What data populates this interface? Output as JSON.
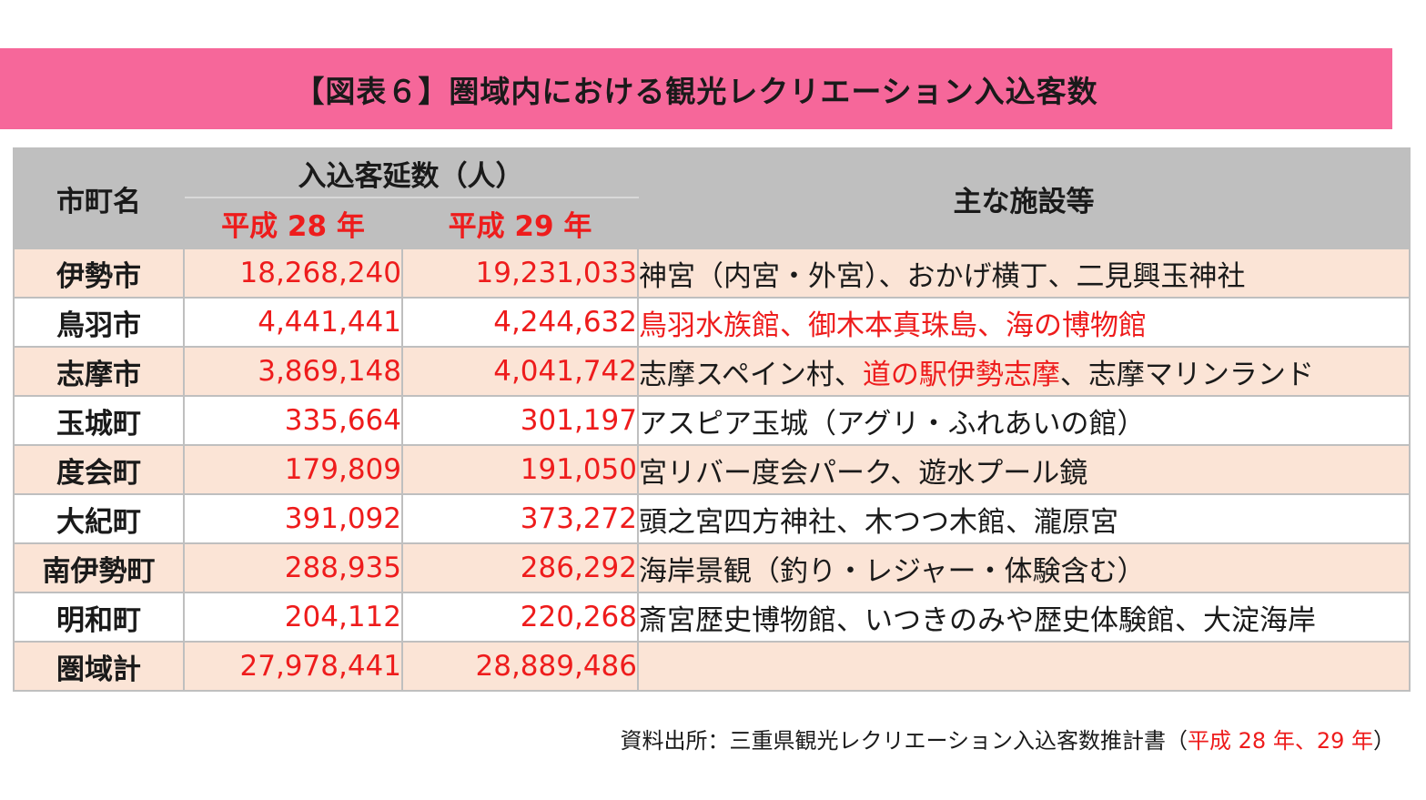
{
  "title": "【図表６】圏域内における観光レクリエーション入込客数",
  "headers": {
    "city": "市町名",
    "visitors_group": "入込客延数（人）",
    "year1": "平成 28 年",
    "year2": "平成 29 年",
    "facilities": "主な施設等"
  },
  "rows": [
    {
      "city": "伊勢市",
      "y28": "18,268,240",
      "y29": "19,231,033",
      "facilities": [
        {
          "text": "神宮（内宮・外宮）、おかげ横丁、二見興玉神社",
          "red": false
        }
      ]
    },
    {
      "city": "鳥羽市",
      "y28": "4,441,441",
      "y29": "4,244,632",
      "facilities": [
        {
          "text": "鳥羽水族館、御木本真珠島、海の博物館",
          "red": true
        }
      ]
    },
    {
      "city": "志摩市",
      "y28": "3,869,148",
      "y29": "4,041,742",
      "facilities": [
        {
          "text": "志摩スペイン村、",
          "red": false
        },
        {
          "text": "道の駅伊勢志摩",
          "red": true
        },
        {
          "text": "、志摩マリンランド",
          "red": false
        }
      ]
    },
    {
      "city": "玉城町",
      "y28": "335,664",
      "y29": "301,197",
      "facilities": [
        {
          "text": "アスピア玉城（アグリ・ふれあいの館）",
          "red": false
        }
      ]
    },
    {
      "city": "度会町",
      "y28": "179,809",
      "y29": "191,050",
      "facilities": [
        {
          "text": "宮リバー度会パーク、遊水プール鏡",
          "red": false
        }
      ]
    },
    {
      "city": "大紀町",
      "y28": "391,092",
      "y29": "373,272",
      "facilities": [
        {
          "text": "頭之宮四方神社、木つつ木館、瀧原宮",
          "red": false
        }
      ]
    },
    {
      "city": "南伊勢町",
      "y28": "288,935",
      "y29": "286,292",
      "facilities": [
        {
          "text": "海岸景観（釣り・レジャー・体験含む）",
          "red": false
        }
      ]
    },
    {
      "city": "明和町",
      "y28": "204,112",
      "y29": "220,268",
      "facilities": [
        {
          "text": "斎宮歴史博物館、いつきのみや歴史体験館、大淀海岸",
          "red": false
        }
      ]
    },
    {
      "city": "圏域計",
      "y28": "27,978,441",
      "y29": "28,889,486",
      "facilities": []
    }
  ],
  "source": {
    "prefix": "資料出所：三重県観光レクリエーション入込客数推計書（",
    "highlight": "平成 28 年、29 年",
    "suffix": "）"
  },
  "colors": {
    "banner": "#f6679a",
    "header": "#bfbfbf",
    "row_tint": "#fbe4d6",
    "red": "#ee1c1c"
  }
}
